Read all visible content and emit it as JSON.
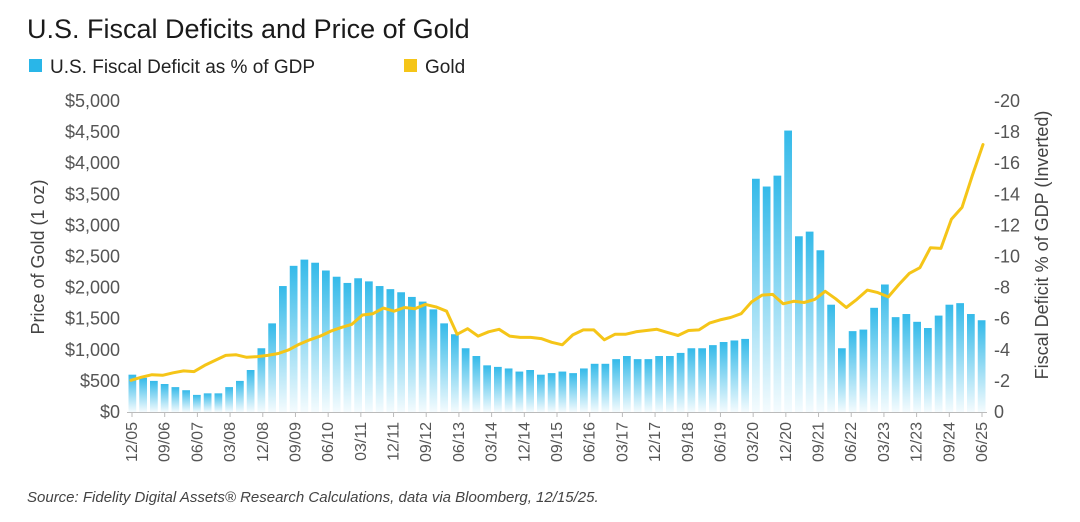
{
  "chart_data": {
    "type": "bar+line",
    "title": "U.S. Fiscal Deficits and Price of Gold",
    "legend": [
      {
        "label": "U.S. Fiscal Deficit as % of GDP",
        "color": "#29b6e8"
      },
      {
        "label": "Gold",
        "color": "#f5c518"
      }
    ],
    "ylabel_left": "Price of Gold (1 oz)",
    "ylabel_right": "Fiscal Deficit % of GDP (Inverted)",
    "ylim_left": [
      0,
      5000
    ],
    "ylim_right": [
      0,
      -20
    ],
    "yticks_left": [
      "$0",
      "$500",
      "$1,000",
      "$1,500",
      "$2,000",
      "$2,500",
      "$3,000",
      "$3,500",
      "$4,000",
      "$4,500",
      "$5,000"
    ],
    "yticks_right": [
      "0",
      "-2",
      "-4",
      "-6",
      "-8",
      "-10",
      "-12",
      "-14",
      "-16",
      "-18",
      "-20"
    ],
    "xticks": [
      "12/05",
      "09/06",
      "06/07",
      "03/08",
      "12/08",
      "09/09",
      "06/10",
      "03/11",
      "12/11",
      "09/12",
      "06/13",
      "03/14",
      "12/14",
      "09/15",
      "06/16",
      "03/17",
      "12/17",
      "09/18",
      "06/19",
      "03/20",
      "12/20",
      "09/21",
      "06/22",
      "03/23",
      "12/23",
      "09/24",
      "06/25"
    ],
    "source": "Source: Fidelity Digital Assets® Research Calculations, data via Bloomberg, 12/15/25.",
    "deficit": [
      -2.4,
      -2.2,
      -2.0,
      -1.8,
      -1.6,
      -1.4,
      -1.1,
      -1.2,
      -1.2,
      -1.6,
      -2.0,
      -2.7,
      -4.1,
      -5.7,
      -8.1,
      -9.4,
      -9.8,
      -9.6,
      -9.1,
      -8.7,
      -8.3,
      -8.6,
      -8.4,
      -8.1,
      -7.9,
      -7.7,
      -7.4,
      -7.1,
      -6.6,
      -5.7,
      -5.0,
      -4.1,
      -3.6,
      -3.0,
      -2.9,
      -2.8,
      -2.6,
      -2.7,
      -2.4,
      -2.5,
      -2.6,
      -2.5,
      -2.8,
      -3.1,
      -3.1,
      -3.4,
      -3.6,
      -3.4,
      -3.4,
      -3.6,
      -3.6,
      -3.8,
      -4.1,
      -4.1,
      -4.3,
      -4.5,
      -4.6,
      -4.7,
      -15.0,
      -14.5,
      -15.2,
      -18.1,
      -11.3,
      -11.6,
      -10.4,
      -6.9,
      -4.1,
      -5.2,
      -5.3,
      -6.7,
      -8.2,
      -6.1,
      -6.3,
      -5.8,
      -5.4,
      -6.2,
      -6.9,
      -7.0,
      -6.3,
      -5.9
    ],
    "gold": [
      510,
      560,
      600,
      590,
      630,
      660,
      650,
      750,
      830,
      910,
      920,
      880,
      890,
      910,
      940,
      1000,
      1090,
      1160,
      1220,
      1300,
      1360,
      1410,
      1560,
      1580,
      1670,
      1620,
      1680,
      1660,
      1730,
      1690,
      1620,
      1250,
      1340,
      1220,
      1290,
      1330,
      1220,
      1200,
      1200,
      1180,
      1120,
      1080,
      1240,
      1320,
      1320,
      1160,
      1250,
      1250,
      1290,
      1310,
      1330,
      1280,
      1230,
      1310,
      1320,
      1430,
      1480,
      1520,
      1580,
      1770,
      1880,
      1890,
      1740,
      1780,
      1760,
      1810,
      1940,
      1820,
      1680,
      1810,
      1960,
      1920,
      1850,
      2050,
      2230,
      2320,
      2640,
      2630,
      3100,
      3290,
      3810,
      4300
    ]
  }
}
